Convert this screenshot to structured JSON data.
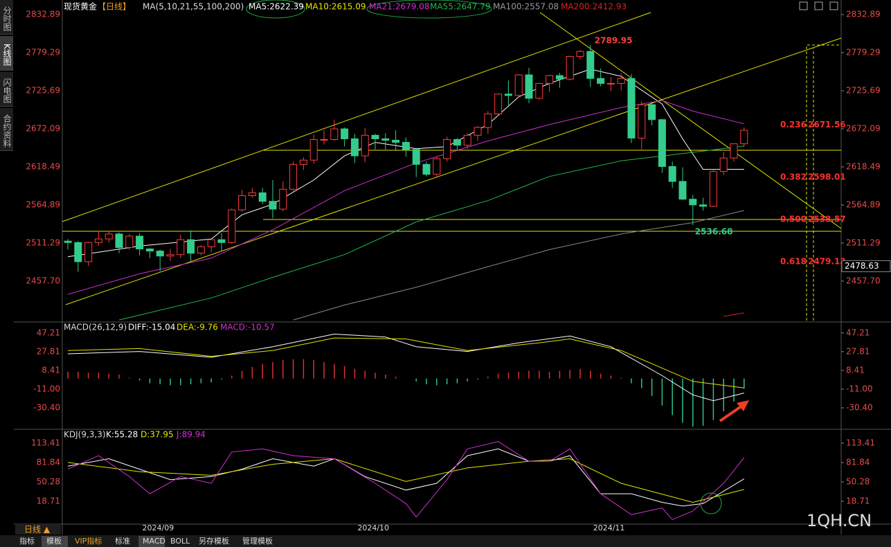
{
  "ui": {
    "sidebar": [
      "分时图",
      "K线图",
      "闪电图",
      "合约资料"
    ],
    "header": {
      "name": "现货黄金",
      "period": "【日线】",
      "ma_legend": [
        "MA(5,10,21,55,100,200)",
        "MA5:2622.39",
        "MA10:2615.09",
        "MA21:2679.08",
        "MA55:2647.79",
        "MA100:2557.08",
        "MA200:2412.93"
      ]
    },
    "macd_header": [
      "MACD(26,12,9)",
      "DIFF:-15.04",
      "DEA:-9.76",
      "MACD:-10.57"
    ],
    "kdj_header": [
      "KDJ(9,3,3)",
      "K:55.28",
      "D:37.95",
      "J:89.94"
    ],
    "period_button": "日线 ▲",
    "tabs": [
      "指标",
      "模板",
      "VIP指标",
      "标准",
      "MACD",
      "BOLL",
      "另存模板",
      "管理模板"
    ],
    "watermark": "1QH.CN"
  },
  "chart_data": [
    {
      "type": "candlestick",
      "categories": [
        null,
        null,
        null,
        null,
        null,
        null,
        null,
        null,
        "2024/09",
        null,
        null,
        null,
        null,
        null,
        null,
        null,
        null,
        null,
        null,
        null,
        null,
        null,
        null,
        null,
        null,
        null,
        null,
        null,
        null,
        "2024/10",
        null,
        null,
        null,
        null,
        null,
        null,
        null,
        null,
        null,
        null,
        null,
        null,
        null,
        null,
        null,
        null,
        null,
        null,
        null,
        null,
        null,
        null,
        "2024/11",
        null,
        null,
        null,
        null,
        null,
        null,
        null,
        null,
        null,
        null,
        null,
        null,
        null,
        null
      ],
      "open": [
        2514,
        2512,
        2485,
        2512,
        2517,
        2524,
        2505,
        2521,
        2503,
        2500,
        2493,
        2495,
        2516,
        2497,
        2506,
        2516,
        2512,
        2558,
        2578,
        2582,
        2570,
        2559,
        2587,
        2622,
        2628,
        2657,
        2657,
        2672,
        2658,
        2634,
        2663,
        2658,
        2656,
        2653,
        2643,
        2622,
        2608,
        2630,
        2657,
        2649,
        2663,
        2674,
        2693,
        2721,
        2719,
        2748,
        2715,
        2736,
        2747,
        2742,
        2774,
        2781,
        2743,
        2736,
        2736,
        2743,
        2659,
        2706,
        2685,
        2619,
        2598,
        2573,
        2565,
        2563,
        2612,
        2631,
        2651
      ],
      "high": [
        2517,
        2514,
        2513,
        2528,
        2527,
        2526,
        2524,
        2525,
        2504,
        2502,
        2503,
        2523,
        2529,
        2508,
        2517,
        2525,
        2560,
        2586,
        2589,
        2589,
        2600,
        2598,
        2626,
        2632,
        2664,
        2670,
        2685,
        2674,
        2665,
        2673,
        2665,
        2666,
        2670,
        2660,
        2645,
        2626,
        2633,
        2661,
        2659,
        2666,
        2676,
        2697,
        2722,
        2740,
        2749,
        2758,
        2737,
        2748,
        2751,
        2775,
        2783,
        2789.95,
        2757,
        2745,
        2750,
        2749,
        2711,
        2710,
        2686,
        2626,
        2618,
        2579,
        2575,
        2614,
        2639,
        2651,
        2674
      ],
      "low": [
        2502,
        2471,
        2479,
        2507,
        2512,
        2497,
        2502,
        2494,
        2490,
        2472,
        2486,
        2490,
        2485,
        2494,
        2498,
        2500,
        2510,
        2555,
        2575,
        2566,
        2546,
        2556,
        2584,
        2614,
        2623,
        2650,
        2655,
        2647,
        2624,
        2625,
        2643,
        2643,
        2641,
        2633,
        2604,
        2605,
        2603,
        2626,
        2641,
        2644,
        2655,
        2665,
        2691,
        2705,
        2716,
        2708,
        2713,
        2724,
        2730,
        2740,
        2770,
        2731,
        2732,
        2725,
        2726,
        2652,
        2643,
        2677,
        2610,
        2589,
        2572,
        2536.68,
        2557,
        2562,
        2607,
        2626,
        2647
      ],
      "close": [
        2512,
        2485,
        2512,
        2517,
        2524,
        2505,
        2521,
        2503,
        2500,
        2493,
        2495,
        2516,
        2497,
        2506,
        2516,
        2512,
        2558,
        2578,
        2582,
        2570,
        2559,
        2587,
        2622,
        2628,
        2657,
        2657,
        2672,
        2658,
        2634,
        2663,
        2658,
        2656,
        2653,
        2643,
        2622,
        2608,
        2630,
        2657,
        2649,
        2663,
        2674,
        2693,
        2721,
        2719,
        2748,
        2715,
        2736,
        2747,
        2742,
        2774,
        2781,
        2743,
        2736,
        2736,
        2743,
        2659,
        2706,
        2685,
        2619,
        2598,
        2573,
        2565,
        2563,
        2612,
        2631,
        2651,
        2670
      ],
      "high_labels": [
        null,
        null,
        null,
        null,
        null,
        null,
        null,
        null,
        null,
        null,
        null,
        null,
        null,
        null,
        null,
        null,
        null,
        null,
        null,
        null,
        null,
        null,
        null,
        null,
        null,
        null,
        null,
        null,
        null,
        null,
        null,
        null,
        null,
        null,
        null,
        null,
        null,
        null,
        null,
        null,
        null,
        null,
        null,
        null,
        null,
        null,
        null,
        null,
        null,
        null,
        null,
        "2789.95",
        null,
        null,
        null,
        null,
        null,
        null,
        null,
        null,
        null,
        null,
        null,
        null,
        null,
        null,
        null
      ],
      "low_labels": [
        null,
        null,
        null,
        null,
        null,
        null,
        null,
        null,
        null,
        null,
        null,
        null,
        null,
        null,
        null,
        null,
        null,
        null,
        null,
        null,
        null,
        null,
        null,
        null,
        null,
        null,
        null,
        null,
        null,
        null,
        null,
        null,
        null,
        null,
        null,
        null,
        null,
        null,
        null,
        null,
        null,
        null,
        null,
        null,
        null,
        null,
        null,
        null,
        null,
        null,
        null,
        null,
        null,
        null,
        null,
        null,
        null,
        null,
        null,
        null,
        null,
        "2536.68",
        null,
        null,
        null,
        null,
        null
      ],
      "up_color": "#ff3c3c",
      "down_color": "#33cc8c",
      "lines": [
        {
          "color": "#ffffff",
          "x": [
            0,
            7,
            14,
            17,
            20,
            24,
            27,
            30,
            34,
            37,
            41,
            44,
            47,
            51,
            54,
            58,
            60,
            62,
            66
          ],
          "values": [
            2492,
            2507,
            2517,
            2551,
            2566,
            2600,
            2634,
            2653,
            2644,
            2647,
            2678,
            2717,
            2736,
            2756,
            2746,
            2707,
            2658,
            2615,
            2615.09
          ]
        },
        {
          "color": "#d030d0",
          "x": [
            0,
            7,
            14,
            20,
            27,
            34,
            41,
            47,
            54,
            58,
            61,
            66
          ],
          "values": [
            2439,
            2468,
            2490,
            2530,
            2585,
            2624,
            2655,
            2678,
            2702,
            2712,
            2697,
            2679.08
          ]
        },
        {
          "color": "#22b84a",
          "x": [
            5,
            14,
            20,
            27,
            34,
            41,
            47,
            54,
            61,
            66
          ],
          "values": [
            2403,
            2434,
            2463,
            2495,
            2541,
            2571,
            2605,
            2627,
            2639,
            2647.79
          ]
        },
        {
          "color": "#888888",
          "x": [
            22,
            27,
            34,
            41,
            47,
            54,
            61,
            66
          ],
          "values": [
            2403,
            2424,
            2449,
            2478,
            2502,
            2524,
            2540,
            2557.08
          ]
        },
        {
          "color": "#e02020",
          "x": [
            64,
            66
          ],
          "values": [
            2408,
            2412.93
          ]
        }
      ],
      "fib": [
        {
          "ratio": 0.236,
          "price": 2671.56
        },
        {
          "ratio": 0.382,
          "price": 2598.01
        },
        {
          "ratio": {
            "value": 0.5,
            "label": "0.500"
          },
          "price": 2538.57
        },
        {
          "ratio": 0.618,
          "price": 2479.13
        }
      ],
      "price_marker": 2478.63,
      "ylim": [
        2402.1,
        2845.6
      ],
      "yticks": [
        2832.89,
        2779.29,
        2725.69,
        2672.09,
        2618.49,
        2564.89,
        2511.29,
        {
          "value": 2457.7,
          "label": "2457.70"
        }
      ]
    },
    {
      "type": "macd",
      "values": [
        7,
        7,
        6,
        6,
        5,
        4,
        1,
        -2,
        -5,
        -6,
        -7,
        -7,
        -6,
        -5,
        -4,
        -1,
        3,
        8,
        12,
        15,
        17,
        19,
        20,
        20,
        19,
        17,
        15,
        13,
        10,
        8,
        6,
        4,
        2,
        0,
        -3,
        -6,
        -7,
        -6,
        -5,
        -3,
        -1,
        2,
        5,
        6,
        7,
        8,
        8,
        7,
        8,
        9,
        10,
        8,
        5,
        3,
        1,
        -5,
        -10,
        -18,
        -28,
        -38,
        -46,
        -50,
        -49,
        -43,
        -34,
        -24,
        -10.57
      ],
      "up_color": "#e03030",
      "down_color": "#2ec28a",
      "lines": [
        {
          "color": "#ffffff",
          "x": [
            0,
            7,
            14,
            20,
            26,
            31,
            34,
            39,
            44,
            49,
            53,
            58,
            61,
            63,
            66
          ],
          "values": [
            25.6,
            28,
            22,
            33,
            46,
            43,
            33,
            28,
            37,
            44,
            33,
            3,
            -17,
            -23,
            -15.04
          ]
        },
        {
          "color": "#e6e600",
          "x": [
            0,
            7,
            14,
            20,
            26,
            33,
            39,
            46,
            49,
            54,
            61,
            66
          ],
          "values": [
            29,
            31,
            23,
            29,
            42,
            41,
            29,
            37,
            41,
            29,
            -3,
            -9.76
          ]
        }
      ],
      "ylim": [
        -50.5,
        55
      ],
      "yticks": [
        47.21,
        27.81,
        8.41,
        {
          "value": -11,
          "label": "-11.00"
        },
        {
          "value": -30.4,
          "label": "-30.40"
        }
      ]
    },
    {
      "type": "kdj",
      "lines": [
        {
          "color": "#ffffff",
          "x": [
            0,
            4,
            7,
            10,
            14,
            17,
            20,
            24,
            26,
            29,
            33,
            36,
            39,
            42,
            45,
            47,
            49,
            52,
            55,
            58,
            60,
            62,
            66
          ],
          "values": [
            76,
            88,
            71,
            54,
            59,
            71,
            88,
            76,
            88,
            59,
            37,
            48,
            93,
            104,
            84,
            84,
            93,
            31,
            31,
            17,
            11,
            15,
            55.28
          ]
        },
        {
          "color": "#e6e600",
          "x": [
            0,
            7,
            14,
            20,
            26,
            33,
            39,
            45,
            49,
            54,
            61,
            66
          ],
          "values": [
            82,
            67,
            61,
            79,
            88,
            51,
            73,
            84,
            88,
            48,
            17,
            37.95
          ]
        },
        {
          "color": "#d030d0",
          "x": [
            0,
            3,
            6,
            8,
            11,
            14,
            16,
            19,
            22,
            26,
            30,
            33,
            34,
            37,
            39,
            42,
            45,
            47,
            49,
            52,
            55,
            58,
            59,
            61,
            64,
            66
          ],
          "values": [
            71,
            93,
            59,
            31,
            59,
            48,
            99,
            104,
            93,
            88,
            48,
            15,
            -7,
            54,
            104,
            116,
            84,
            84,
            104,
            31,
            -3,
            8,
            -11,
            3,
            48,
            89.94
          ]
        }
      ],
      "ylim": [
        -16.2,
        130.3
      ],
      "yticks": [
        113.41,
        81.84,
        50.28,
        18.71
      ]
    }
  ]
}
